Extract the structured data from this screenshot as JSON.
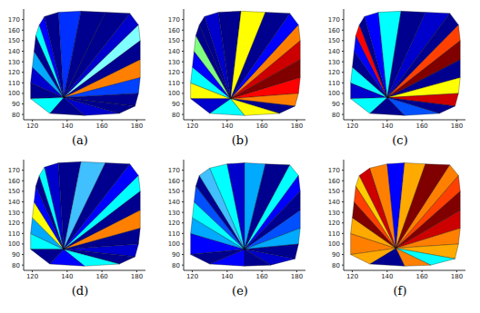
{
  "chart_data": [
    {
      "type": "mesh",
      "title": "(a)",
      "xlim": [
        115,
        185
      ],
      "ylim": [
        75,
        180
      ],
      "xticks": [
        120,
        140,
        160,
        180
      ],
      "yticks": [
        80,
        90,
        100,
        110,
        120,
        130,
        140,
        150,
        160,
        170
      ],
      "tick_labels": true,
      "center": [
        138,
        96
      ],
      "outline": [
        [
          119,
          95
        ],
        [
          119,
          110
        ],
        [
          120,
          125
        ],
        [
          121,
          140
        ],
        [
          122,
          155
        ],
        [
          124,
          165
        ],
        [
          127,
          173
        ],
        [
          135,
          177
        ],
        [
          148,
          178
        ],
        [
          162,
          177
        ],
        [
          176,
          176
        ],
        [
          181,
          165
        ],
        [
          182,
          150
        ],
        [
          182,
          132
        ],
        [
          182,
          115
        ],
        [
          181,
          100
        ],
        [
          179,
          88
        ],
        [
          170,
          81
        ],
        [
          150,
          79
        ],
        [
          130,
          81
        ]
      ],
      "colors": [
        "#00008f",
        "#0000cc",
        "#00aaff",
        "#00008f",
        "#00ffff",
        "#0000ff",
        "#00008f",
        "#0030ff",
        "#00008f",
        "#00008f",
        "#0000cc",
        "#80ffff",
        "#00008f",
        "#ff8000",
        "#0040ff",
        "#00008f",
        "#00008f",
        "#0000cc",
        "#00008f",
        "#00ffff"
      ]
    },
    {
      "type": "mesh",
      "title": "(b)",
      "xlim": [
        115,
        185
      ],
      "ylim": [
        75,
        180
      ],
      "xticks": [
        120,
        140,
        160,
        180
      ],
      "yticks": [
        80,
        90,
        100,
        110,
        120,
        130,
        140,
        150,
        160,
        170
      ],
      "tick_labels": true,
      "center": [
        142,
        95
      ],
      "outline": [
        [
          119,
          95
        ],
        [
          119,
          110
        ],
        [
          120,
          125
        ],
        [
          121,
          140
        ],
        [
          122,
          155
        ],
        [
          124,
          165
        ],
        [
          127,
          173
        ],
        [
          135,
          177
        ],
        [
          148,
          178
        ],
        [
          162,
          177
        ],
        [
          176,
          176
        ],
        [
          181,
          165
        ],
        [
          182,
          150
        ],
        [
          182,
          132
        ],
        [
          182,
          115
        ],
        [
          181,
          100
        ],
        [
          179,
          88
        ],
        [
          170,
          81
        ],
        [
          150,
          79
        ],
        [
          130,
          81
        ]
      ],
      "colors": [
        "#ffff00",
        "#00ffff",
        "#0000ff",
        "#80ff80",
        "#00008f",
        "#00008f",
        "#0000cc",
        "#00008f",
        "#ffff00",
        "#00008f",
        "#0000ff",
        "#ff8000",
        "#cc0000",
        "#800000",
        "#ff0000",
        "#ff8000",
        "#00008f",
        "#ffff00",
        "#00ffff",
        "#0000cc"
      ]
    },
    {
      "type": "mesh",
      "title": "(c)",
      "xlim": [
        115,
        185
      ],
      "ylim": [
        75,
        180
      ],
      "xticks": [
        120,
        140,
        160,
        180
      ],
      "yticks": [
        80,
        90,
        100,
        110,
        120,
        130,
        140,
        150,
        160,
        170
      ],
      "tick_labels": true,
      "center": [
        140,
        96
      ],
      "outline": [
        [
          119,
          95
        ],
        [
          119,
          110
        ],
        [
          120,
          125
        ],
        [
          121,
          140
        ],
        [
          122,
          155
        ],
        [
          124,
          165
        ],
        [
          127,
          173
        ],
        [
          135,
          177
        ],
        [
          148,
          178
        ],
        [
          162,
          177
        ],
        [
          176,
          176
        ],
        [
          181,
          165
        ],
        [
          182,
          150
        ],
        [
          182,
          132
        ],
        [
          182,
          115
        ],
        [
          181,
          100
        ],
        [
          179,
          88
        ],
        [
          170,
          81
        ],
        [
          150,
          79
        ],
        [
          130,
          81
        ]
      ],
      "colors": [
        "#0000cc",
        "#00ffff",
        "#00008f",
        "#0000ff",
        "#ff0000",
        "#00008f",
        "#0000ff",
        "#00ffff",
        "#00008f",
        "#0000cc",
        "#00008f",
        "#ff4000",
        "#800000",
        "#00008f",
        "#ffff00",
        "#cc0000",
        "#00008f",
        "#0050ff",
        "#00008f",
        "#00ffff"
      ]
    },
    {
      "type": "mesh",
      "title": "(d)",
      "xlim": [
        115,
        185
      ],
      "ylim": [
        75,
        180
      ],
      "xticks": [
        120,
        140,
        160,
        180
      ],
      "yticks": [
        80,
        90,
        100,
        110,
        120,
        130,
        140,
        150,
        160,
        170
      ],
      "tick_labels": true,
      "center": [
        138,
        95
      ],
      "outline": [
        [
          119,
          95
        ],
        [
          119,
          110
        ],
        [
          120,
          125
        ],
        [
          121,
          140
        ],
        [
          122,
          155
        ],
        [
          124,
          165
        ],
        [
          127,
          173
        ],
        [
          135,
          177
        ],
        [
          148,
          178
        ],
        [
          162,
          177
        ],
        [
          176,
          176
        ],
        [
          181,
          165
        ],
        [
          182,
          150
        ],
        [
          182,
          132
        ],
        [
          182,
          115
        ],
        [
          181,
          100
        ],
        [
          179,
          88
        ],
        [
          170,
          81
        ],
        [
          150,
          79
        ],
        [
          130,
          81
        ]
      ],
      "colors": [
        "#00ffff",
        "#00aaff",
        "#ffff00",
        "#0000ff",
        "#00008f",
        "#00ffff",
        "#0000cc",
        "#00008f",
        "#40c0ff",
        "#00008f",
        "#0000ff",
        "#00ffff",
        "#00008f",
        "#ff8000",
        "#00008f",
        "#0000cc",
        "#00008f",
        "#00ffff",
        "#0000ff",
        "#00008f"
      ]
    },
    {
      "type": "mesh",
      "title": "(e)",
      "xlim": [
        115,
        185
      ],
      "ylim": [
        75,
        180
      ],
      "xticks": [
        120,
        140,
        160,
        180
      ],
      "yticks": [
        80,
        90,
        100,
        110,
        120,
        130,
        140,
        150,
        160,
        170
      ],
      "tick_labels": true,
      "center": [
        150,
        95
      ],
      "outline": [
        [
          119,
          90
        ],
        [
          119,
          110
        ],
        [
          120,
          125
        ],
        [
          121,
          140
        ],
        [
          122,
          155
        ],
        [
          124,
          165
        ],
        [
          130,
          172
        ],
        [
          140,
          176
        ],
        [
          150,
          177
        ],
        [
          162,
          176
        ],
        [
          176,
          175
        ],
        [
          181,
          165
        ],
        [
          182,
          150
        ],
        [
          182,
          132
        ],
        [
          182,
          115
        ],
        [
          181,
          100
        ],
        [
          179,
          86
        ],
        [
          165,
          80
        ],
        [
          150,
          79
        ],
        [
          130,
          81
        ]
      ],
      "colors": [
        "#0000ff",
        "#00aaff",
        "#00ffff",
        "#0050ff",
        "#00008f",
        "#40c0ff",
        "#00ffff",
        "#0000cc",
        "#00aaff",
        "#00008f",
        "#00ffff",
        "#0000ff",
        "#00008f",
        "#0050ff",
        "#00aaff",
        "#00008f",
        "#0000cc",
        "#00008f",
        "#0000ff",
        "#00008f"
      ]
    },
    {
      "type": "mesh",
      "title": "(f)",
      "xlim": [
        115,
        185
      ],
      "ylim": [
        75,
        180
      ],
      "xticks": [
        120,
        140,
        160,
        180
      ],
      "yticks": [
        80,
        90,
        100,
        110,
        120,
        130,
        140,
        150,
        160,
        170
      ],
      "tick_labels": true,
      "center": [
        145,
        96
      ],
      "outline": [
        [
          119,
          90
        ],
        [
          119,
          110
        ],
        [
          120,
          125
        ],
        [
          121,
          140
        ],
        [
          122,
          155
        ],
        [
          124,
          165
        ],
        [
          130,
          172
        ],
        [
          140,
          176
        ],
        [
          150,
          177
        ],
        [
          162,
          176
        ],
        [
          176,
          175
        ],
        [
          181,
          165
        ],
        [
          182,
          150
        ],
        [
          182,
          132
        ],
        [
          182,
          115
        ],
        [
          181,
          100
        ],
        [
          179,
          86
        ],
        [
          165,
          80
        ],
        [
          150,
          79
        ],
        [
          130,
          81
        ]
      ],
      "colors": [
        "#ff8000",
        "#ffaa00",
        "#800000",
        "#ff4000",
        "#ffcc00",
        "#cc0000",
        "#ff8000",
        "#0000ff",
        "#ffaa00",
        "#800000",
        "#ff8000",
        "#ff4000",
        "#800000",
        "#cc0000",
        "#ff8000",
        "#ffaa00",
        "#00ffff",
        "#ff8000",
        "#00008f",
        "#ffaa00"
      ]
    }
  ]
}
